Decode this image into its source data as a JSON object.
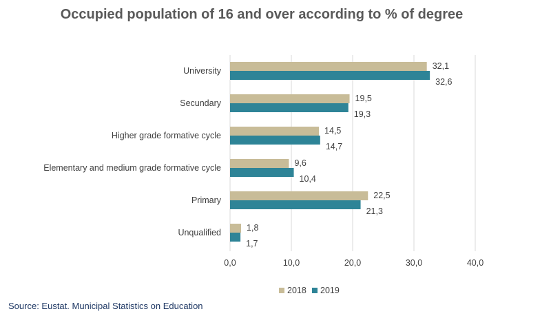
{
  "chart_data": {
    "type": "bar",
    "orientation": "horizontal",
    "title": "Occupied population of 16 and over according to % of degree",
    "categories": [
      "University",
      "Secundary",
      "Higher grade formative cycle",
      "Elementary and medium grade formative cycle",
      "Primary",
      "Unqualified"
    ],
    "series": [
      {
        "name": "2018",
        "color": "#c8bc98",
        "values": [
          32.1,
          19.5,
          14.5,
          9.6,
          22.5,
          1.8
        ],
        "labels": [
          "32,1",
          "19,5",
          "14,5",
          "9,6",
          "22,5",
          "1,8"
        ]
      },
      {
        "name": "2019",
        "color": "#2e8497",
        "values": [
          32.6,
          19.3,
          14.7,
          10.4,
          21.3,
          1.7
        ],
        "labels": [
          "32,6",
          "19,3",
          "14,7",
          "10,4",
          "21,3",
          "1,7"
        ]
      }
    ],
    "xlim": [
      0,
      40
    ],
    "xticks": [
      0,
      10,
      20,
      30,
      40
    ],
    "xtick_labels": [
      "0,0",
      "10,0",
      "20,0",
      "30,0",
      "40,0"
    ],
    "grid": true,
    "legend_position": "bottom"
  },
  "footer": {
    "source": "Source: Eustat. Municipal Statistics on Education"
  }
}
